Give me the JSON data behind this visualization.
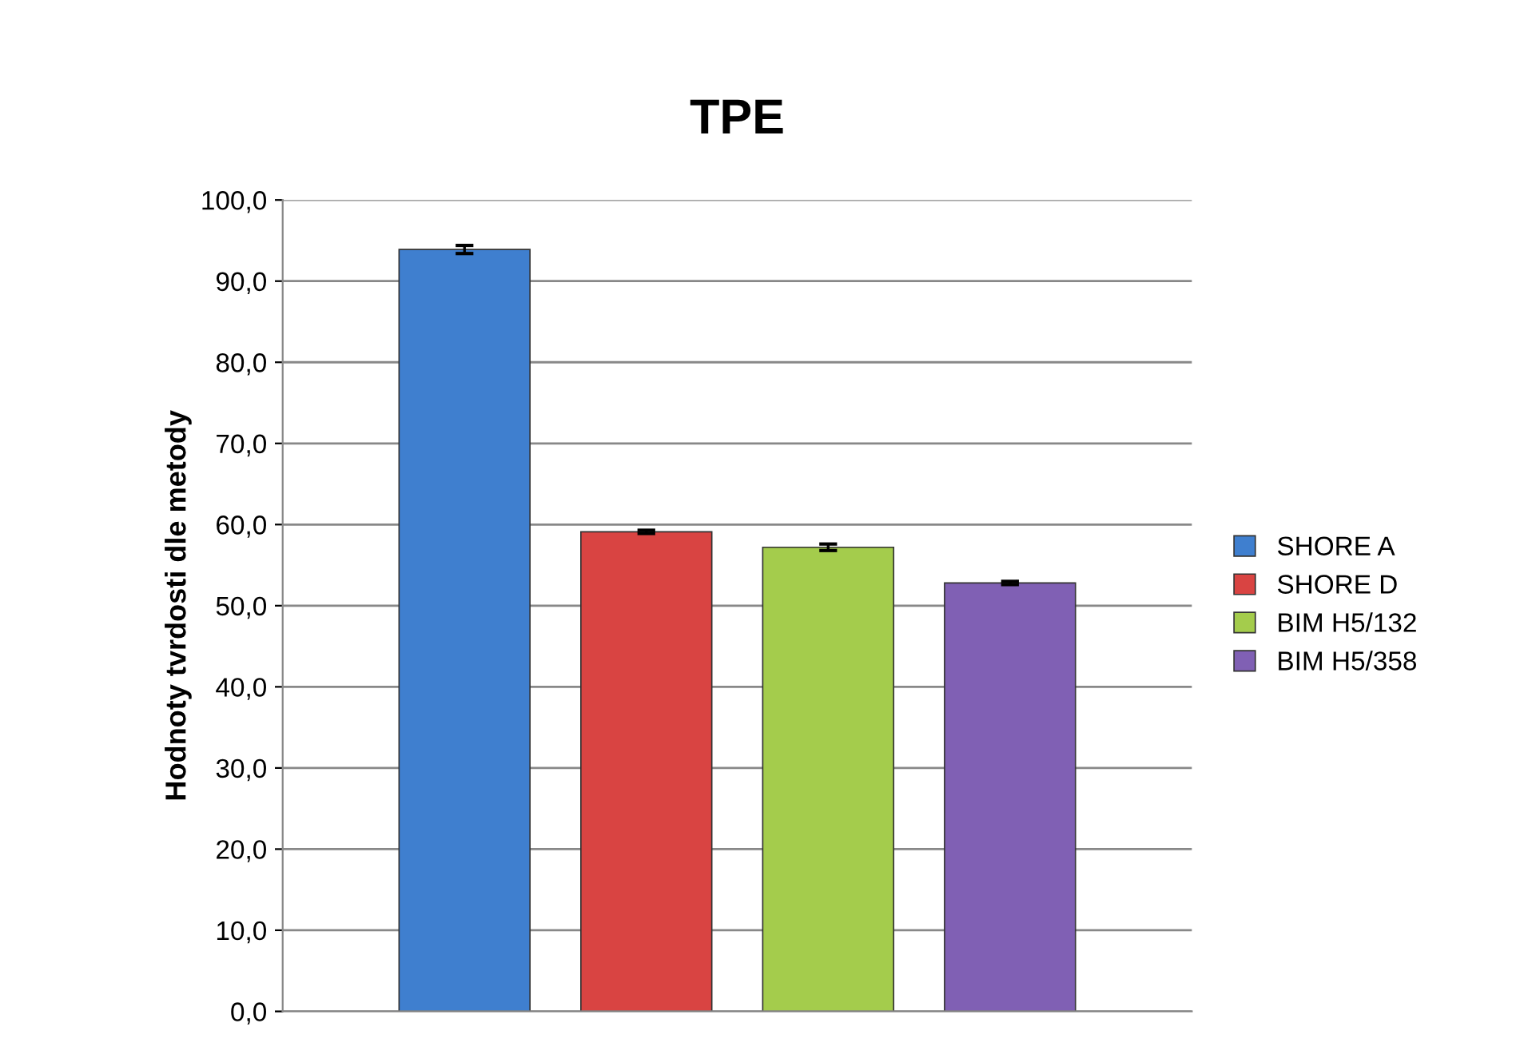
{
  "chart_data": {
    "type": "bar",
    "title": "TPE",
    "ylabel": "Hodnoty tvrdosti dle metody",
    "categories": [
      null
    ],
    "series": [
      {
        "name": "SHORE A",
        "color": "#3f7fcf",
        "values": [
          93.9
        ],
        "errors": [
          0.5
        ]
      },
      {
        "name": "SHORE D",
        "color": "#d94442",
        "values": [
          59.1
        ],
        "errors": [
          0.2
        ]
      },
      {
        "name": "BIM H5/132",
        "color": "#a4cc4c",
        "values": [
          57.2
        ],
        "errors": [
          0.4
        ]
      },
      {
        "name": "BIM H5/358",
        "color": "#8060b4",
        "values": [
          52.8
        ],
        "errors": [
          0.2
        ]
      }
    ],
    "ylim": [
      0,
      100
    ],
    "yticks": [
      {
        "value": 0,
        "label": "0,0"
      },
      {
        "value": 10,
        "label": "10,0"
      },
      {
        "value": 20,
        "label": "20,0"
      },
      {
        "value": 30,
        "label": "30,0"
      },
      {
        "value": 40,
        "label": "40,0"
      },
      {
        "value": 50,
        "label": "50,0"
      },
      {
        "value": 60,
        "label": "60,0"
      },
      {
        "value": 70,
        "label": "70,0"
      },
      {
        "value": 80,
        "label": "80,0"
      },
      {
        "value": 90,
        "label": "90,0"
      },
      {
        "value": 100,
        "label": "100,0"
      }
    ],
    "grid": "y",
    "legend": "right"
  }
}
